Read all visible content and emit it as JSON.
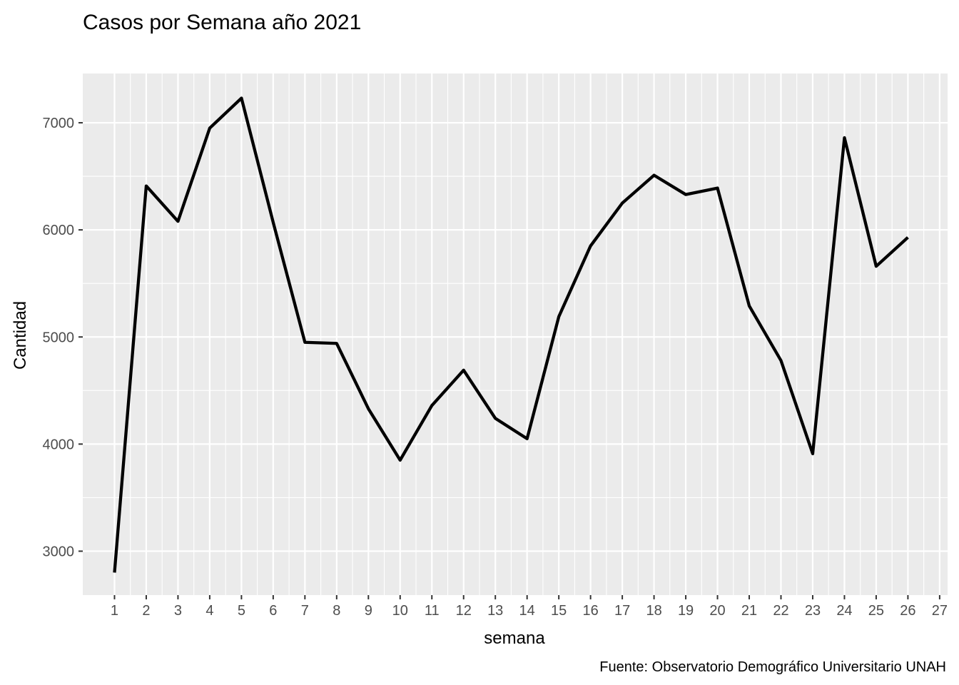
{
  "chart_data": {
    "type": "line",
    "title": "Casos por Semana año 2021",
    "xlabel": "semana",
    "ylabel": "Cantidad",
    "caption": "Fuente: Observatorio Demográfico Universitario UNAH",
    "x": [
      1,
      2,
      3,
      4,
      5,
      6,
      7,
      8,
      9,
      10,
      11,
      12,
      13,
      14,
      15,
      16,
      17,
      18,
      19,
      20,
      21,
      22,
      23,
      24,
      25,
      26
    ],
    "series": [
      {
        "values": [
          2800,
          6410,
          6080,
          6950,
          7230,
          6070,
          4950,
          4940,
          4330,
          3850,
          4360,
          4690,
          4240,
          4050,
          5190,
          5850,
          6250,
          6510,
          6330,
          6390,
          5290,
          4780,
          3910,
          6860,
          5660,
          5930
        ],
        "color": "#000000"
      }
    ],
    "x_ticks": [
      "1",
      "2",
      "3",
      "4",
      "5",
      "6",
      "7",
      "8",
      "9",
      "10",
      "11",
      "12",
      "13",
      "14",
      "15",
      "16",
      "17",
      "18",
      "19",
      "20",
      "21",
      "22",
      "23",
      "24",
      "25",
      "26",
      "27"
    ],
    "y_ticks": [
      3000,
      4000,
      5000,
      6000,
      7000
    ],
    "xlim": [
      0.0,
      27.25
    ],
    "ylim": [
      2590,
      7460
    ],
    "grid": true,
    "panel_background": "#ebebeb",
    "grid_color": "#ffffff"
  }
}
